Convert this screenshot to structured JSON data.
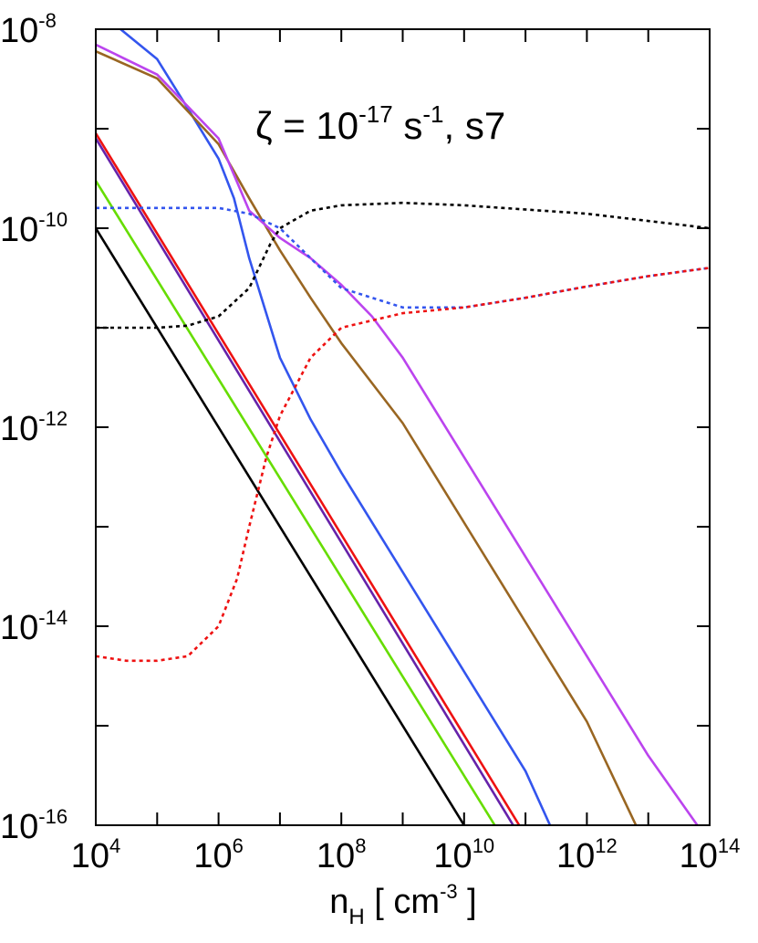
{
  "chart_data": {
    "type": "line",
    "x_scale": "log",
    "y_scale": "log",
    "xlim": [
      10000,
      100000000000000
    ],
    "ylim": [
      1e-16,
      1e-08
    ],
    "grid": false,
    "legend": "none",
    "x_ticks": [
      {
        "value": 10000,
        "base": "10",
        "exp": "4"
      },
      {
        "value": 1000000,
        "base": "10",
        "exp": "6"
      },
      {
        "value": 100000000,
        "base": "10",
        "exp": "8"
      },
      {
        "value": 10000000000,
        "base": "10",
        "exp": "10"
      },
      {
        "value": 1000000000000,
        "base": "10",
        "exp": "12"
      },
      {
        "value": 100000000000000,
        "base": "10",
        "exp": "14"
      }
    ],
    "y_ticks": [
      {
        "value": 1e-08,
        "base": "10",
        "exp": "-8"
      },
      {
        "value": 1e-10,
        "base": "10",
        "exp": "-10"
      },
      {
        "value": 1e-12,
        "base": "10",
        "exp": "-12"
      },
      {
        "value": 1e-14,
        "base": "10",
        "exp": "-14"
      },
      {
        "value": 1e-16,
        "base": "10",
        "exp": "-16"
      }
    ],
    "xlabel": {
      "main": "n",
      "sub": "H",
      "unit": " [ cm",
      "exp": "-3",
      "close": " ]"
    },
    "ylabel": "",
    "annotation": {
      "zeta": "ζ = 10",
      "exp1": "-17",
      "unit": " s",
      "exp2": "-1",
      "tail": ", s7"
    },
    "series": [
      {
        "color": "#000000",
        "style": "solid",
        "points": [
          [
            10000,
            1e-10
          ],
          [
            10000000000,
            1e-16
          ]
        ]
      },
      {
        "color": "#66dd00",
        "style": "solid",
        "points": [
          [
            10000,
            3e-10
          ],
          [
            31600000000,
            1e-16
          ]
        ]
      },
      {
        "color": "#6622aa",
        "style": "solid",
        "points": [
          [
            10000,
            8e-10
          ],
          [
            63000000000,
            1e-16
          ]
        ]
      },
      {
        "color": "#ee1111",
        "style": "solid",
        "points": [
          [
            10000,
            9e-10
          ],
          [
            79000000000,
            1e-16
          ]
        ]
      },
      {
        "color": "#3355ee",
        "style": "solid",
        "points": [
          [
            10000,
            1.6e-08
          ],
          [
            100000,
            5e-09
          ],
          [
            316000,
            1.6e-09
          ],
          [
            1000000,
            5e-10
          ],
          [
            1780000,
            2e-10
          ],
          [
            3160000,
            5e-11
          ],
          [
            10000000,
            5e-12
          ],
          [
            31600000,
            1.2e-12
          ],
          [
            100000000,
            3.5e-13
          ],
          [
            1000000000,
            3.5e-14
          ],
          [
            10000000000,
            3.5e-15
          ],
          [
            100000000000,
            3.5e-16
          ],
          [
            251000000000,
            1e-16
          ]
        ]
      },
      {
        "color": "#996622",
        "style": "solid",
        "points": [
          [
            10000,
            6e-09
          ],
          [
            100000,
            3.2e-09
          ],
          [
            1000000,
            7e-10
          ],
          [
            3160000,
            2e-10
          ],
          [
            10000000,
            6e-11
          ],
          [
            31600000,
            2e-11
          ],
          [
            100000000,
            7e-12
          ],
          [
            1000000000,
            1.1e-12
          ],
          [
            10000000000,
            1.1e-13
          ],
          [
            100000000000,
            1.1e-14
          ],
          [
            1000000000000,
            1.1e-15
          ],
          [
            6300000000000,
            1e-16
          ]
        ]
      },
      {
        "color": "#bb44ee",
        "style": "solid",
        "points": [
          [
            10000,
            7e-09
          ],
          [
            100000,
            3.5e-09
          ],
          [
            1000000,
            8e-10
          ],
          [
            3160000,
            1.5e-10
          ],
          [
            10000000,
            8e-11
          ],
          [
            31600000,
            5e-11
          ],
          [
            100000000,
            2.7e-11
          ],
          [
            316000000,
            1.3e-11
          ],
          [
            1000000000,
            5e-12
          ],
          [
            10000000000,
            5e-13
          ],
          [
            100000000000,
            5e-14
          ],
          [
            1000000000000,
            5e-15
          ],
          [
            10000000000000,
            5e-16
          ],
          [
            63000000000000,
            1e-16
          ]
        ]
      },
      {
        "color": "#000000",
        "style": "dotted",
        "points": [
          [
            10000,
            1e-11
          ],
          [
            100000,
            1e-11
          ],
          [
            316000,
            1.05e-11
          ],
          [
            1000000,
            1.3e-11
          ],
          [
            3160000,
            2.5e-11
          ],
          [
            7000000,
            7e-11
          ],
          [
            10000000,
            1e-10
          ],
          [
            31600000,
            1.5e-10
          ],
          [
            100000000,
            1.7e-10
          ],
          [
            1000000000,
            1.8e-10
          ],
          [
            10000000000,
            1.7e-10
          ],
          [
            1000000000000,
            1.4e-10
          ],
          [
            100000000000000,
            1e-10
          ]
        ]
      },
      {
        "color": "#3355ee",
        "style": "dotted",
        "points": [
          [
            10000,
            1.6e-10
          ],
          [
            100000,
            1.6e-10
          ],
          [
            1000000,
            1.6e-10
          ],
          [
            3160000,
            1.4e-10
          ],
          [
            10000000,
            1e-10
          ],
          [
            31600000,
            5e-11
          ],
          [
            100000000,
            2.5e-11
          ],
          [
            1000000000,
            1.6e-11
          ],
          [
            10000000000,
            1.6e-11
          ],
          [
            100000000000,
            2e-11
          ],
          [
            1000000000000,
            2.6e-11
          ],
          [
            10000000000000,
            3.3e-11
          ],
          [
            100000000000000,
            4e-11
          ]
        ]
      },
      {
        "color": "#ee1111",
        "style": "dotted",
        "points": [
          [
            10000,
            5e-15
          ],
          [
            31600,
            4.5e-15
          ],
          [
            100000,
            4.5e-15
          ],
          [
            316000,
            5e-15
          ],
          [
            1000000,
            1e-14
          ],
          [
            2000000,
            3e-14
          ],
          [
            3160000,
            1e-13
          ],
          [
            6000000,
            5e-13
          ],
          [
            10000000,
            1.3e-12
          ],
          [
            31600000,
            5e-12
          ],
          [
            100000000,
            1e-11
          ],
          [
            1000000000,
            1.4e-11
          ],
          [
            10000000000,
            1.6e-11
          ],
          [
            100000000000,
            2e-11
          ],
          [
            1000000000000,
            2.6e-11
          ],
          [
            10000000000000,
            3.3e-11
          ],
          [
            100000000000000,
            4e-11
          ]
        ]
      }
    ]
  }
}
